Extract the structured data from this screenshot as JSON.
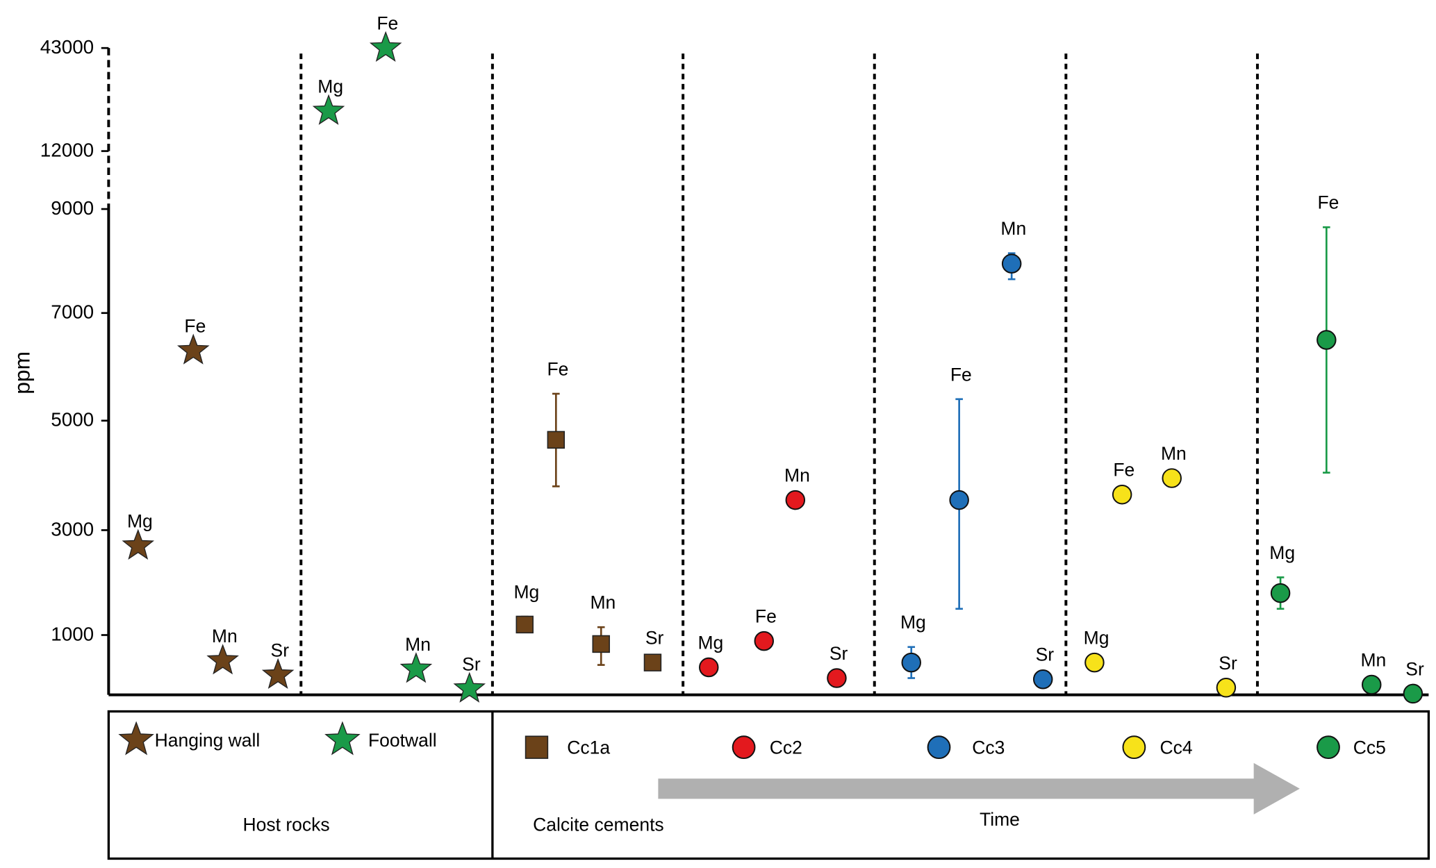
{
  "chart_data": {
    "type": "scatter",
    "title": "",
    "ylabel": "ppm",
    "xlabel": "",
    "y_axis_broken": true,
    "yticks": [
      1000,
      3000,
      5000,
      7000,
      9000,
      12000,
      43000
    ],
    "ylim": [
      0,
      43000
    ],
    "groups": [
      {
        "name": "Hanging wall",
        "category": "Host rocks",
        "color": "#6b4219",
        "marker": "star",
        "points": [
          {
            "element": "Mg",
            "value": 2700
          },
          {
            "element": "Fe",
            "value": 6300
          },
          {
            "element": "Mn",
            "value": 570
          },
          {
            "element": "Sr",
            "value": 330
          }
        ]
      },
      {
        "name": "Footwall",
        "category": "Host rocks",
        "color": "#1a9a48",
        "marker": "star",
        "points": [
          {
            "element": "Mg",
            "value": 24000
          },
          {
            "element": "Fe",
            "value": 43000
          },
          {
            "element": "Mn",
            "value": 430
          },
          {
            "element": "Sr",
            "value": 100
          }
        ]
      },
      {
        "name": "Cc1a",
        "category": "Calcite cements",
        "color": "#6b4219",
        "marker": "square",
        "points": [
          {
            "element": "Mg",
            "value": 1200,
            "err": [
              1100,
              1350
            ]
          },
          {
            "element": "Fe",
            "value": 4650,
            "err": [
              3800,
              5500
            ]
          },
          {
            "element": "Mn",
            "value": 850,
            "err": [
              500,
              1150
            ]
          },
          {
            "element": "Sr",
            "value": 540
          }
        ]
      },
      {
        "name": "Cc2",
        "category": "Calcite cements",
        "color": "#e3191e",
        "marker": "circle",
        "points": [
          {
            "element": "Mg",
            "value": 460
          },
          {
            "element": "Fe",
            "value": 900
          },
          {
            "element": "Mn",
            "value": 3550
          },
          {
            "element": "Sr",
            "value": 280
          }
        ]
      },
      {
        "name": "Cc3",
        "category": "Calcite cements",
        "color": "#1f6fb8",
        "marker": "circle",
        "points": [
          {
            "element": "Mg",
            "value": 540,
            "err": [
              280,
              800
            ]
          },
          {
            "element": "Fe",
            "value": 3550,
            "err": [
              1500,
              5400
            ]
          },
          {
            "element": "Mn",
            "value": 7950,
            "err": [
              7650,
              8150
            ]
          },
          {
            "element": "Sr",
            "value": 260
          }
        ]
      },
      {
        "name": "Cc4",
        "category": "Calcite cements",
        "color": "#f7e21a",
        "marker": "circle",
        "points": [
          {
            "element": "Mg",
            "value": 540
          },
          {
            "element": "Fe",
            "value": 3650
          },
          {
            "element": "Mn",
            "value": 3950
          },
          {
            "element": "Sr",
            "value": 120
          }
        ]
      },
      {
        "name": "Cc5",
        "category": "Calcite cements",
        "color": "#1a9a48",
        "marker": "circle",
        "points": [
          {
            "element": "Mg",
            "value": 1800,
            "err": [
              1500,
              2100
            ]
          },
          {
            "element": "Fe",
            "value": 6500,
            "err": [
              4050,
              8650
            ]
          },
          {
            "element": "Mn",
            "value": 170
          },
          {
            "element": "Sr",
            "value": 20
          }
        ]
      }
    ],
    "legend": {
      "host_label": "Host rocks",
      "cement_label": "Calcite cements",
      "time_label": "Time",
      "placement": "bottom"
    }
  }
}
